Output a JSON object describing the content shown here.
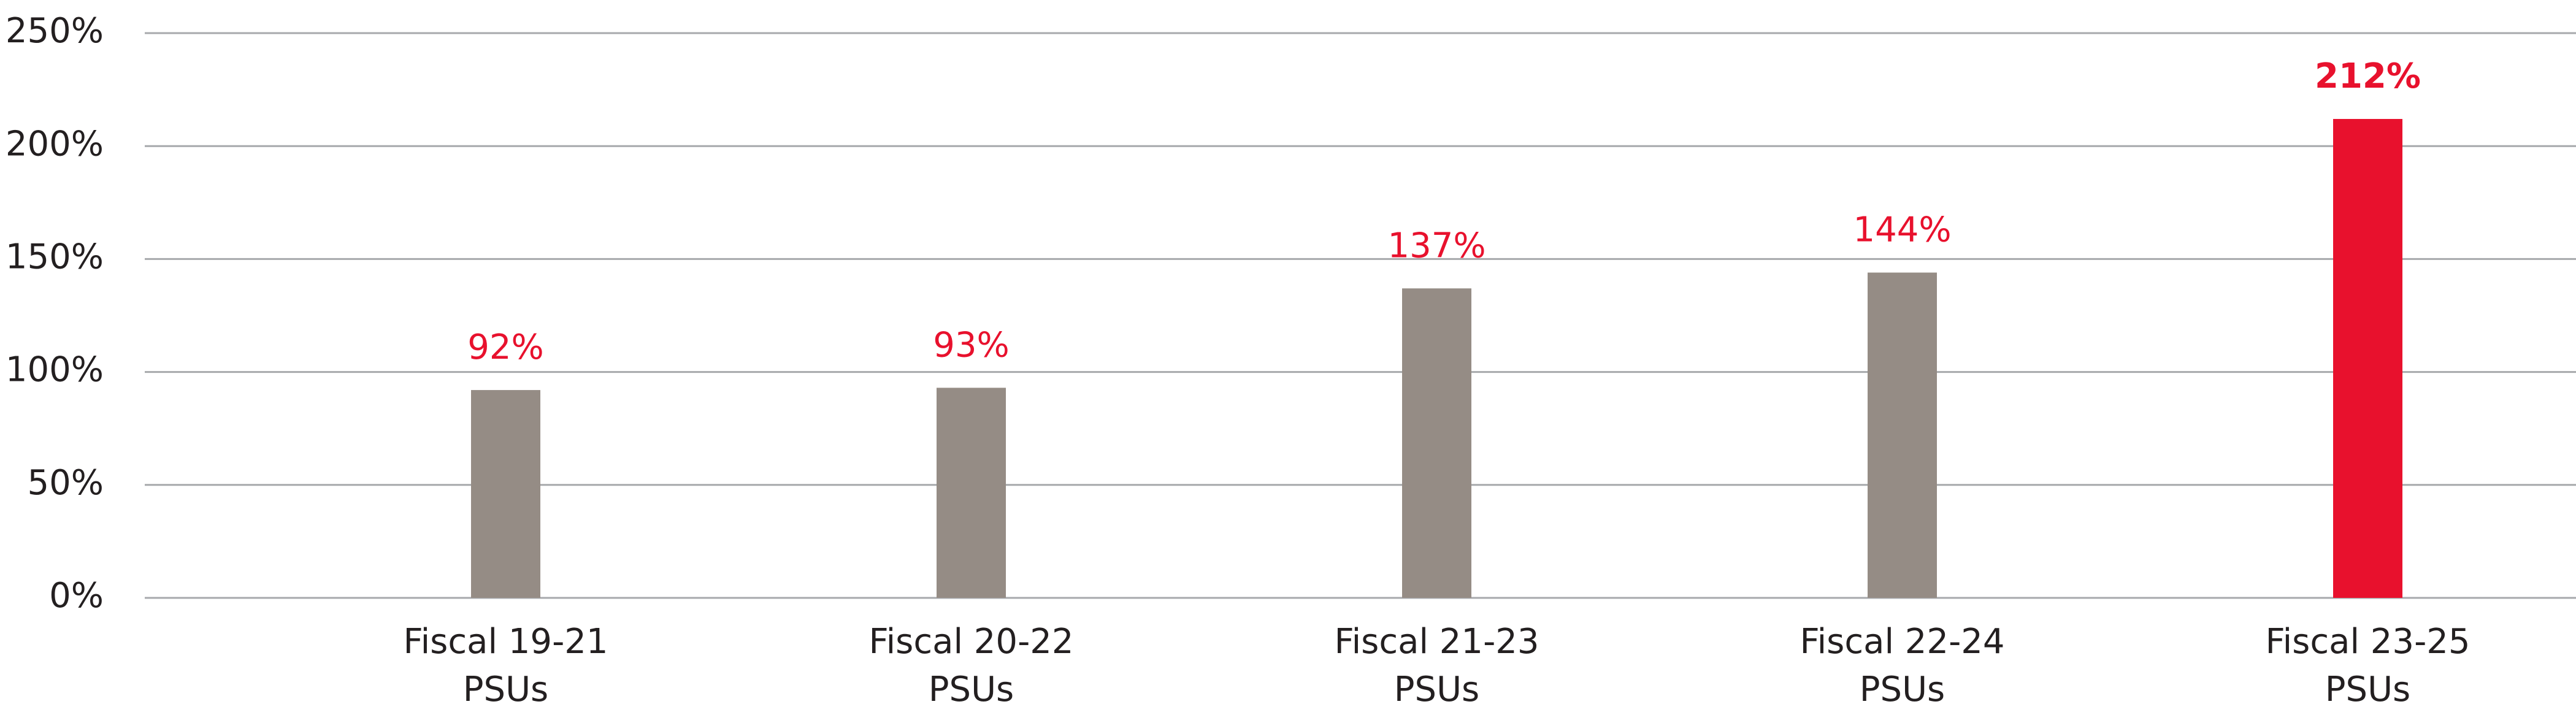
{
  "chart_data": {
    "type": "bar",
    "categories": [
      "Fiscal 19-21\nPSUs",
      "Fiscal 20-22\nPSUs",
      "Fiscal 21-23\nPSUs",
      "Fiscal 22-24\nPSUs",
      "Fiscal 23-25\nPSUs"
    ],
    "values": [
      92,
      93,
      137,
      144,
      212
    ],
    "value_labels": [
      "92%",
      "93%",
      "137%",
      "144%",
      "212%"
    ],
    "colors": [
      "#958c85",
      "#958c85",
      "#958c85",
      "#958c85",
      "#e8112d"
    ],
    "label_color": "#e8112d",
    "ylim": [
      0,
      250
    ],
    "yticks": [
      {
        "value": 0,
        "label": "0%"
      },
      {
        "value": 50,
        "label": "50%"
      },
      {
        "value": 100,
        "label": "100%"
      },
      {
        "value": 150,
        "label": "150%"
      },
      {
        "value": 200,
        "label": "200%"
      },
      {
        "value": 250,
        "label": "250%"
      }
    ],
    "grid": true
  }
}
